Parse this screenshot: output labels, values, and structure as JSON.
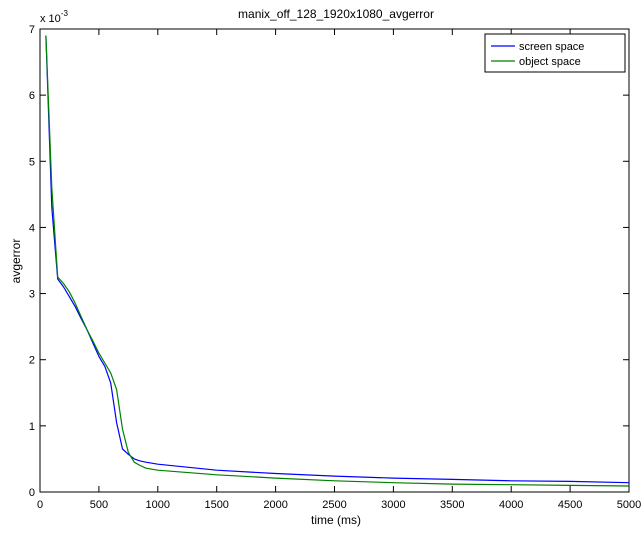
{
  "chart_data": {
    "type": "line",
    "title": "manix_off_128_1920x1080_avgerror",
    "xlabel": "time (ms)",
    "ylabel": "avgerror",
    "y_scale_label": {
      "base": "x 10",
      "exponent": "-3"
    },
    "xlim": [
      0,
      5000
    ],
    "ylim": [
      0,
      7
    ],
    "x_ticks": [
      0,
      500,
      1000,
      1500,
      2000,
      2500,
      3000,
      3500,
      4000,
      4500,
      5000
    ],
    "y_ticks": [
      0,
      1,
      2,
      3,
      4,
      5,
      6,
      7
    ],
    "grid": false,
    "legend_position": "top-right",
    "series": [
      {
        "name": "screen space",
        "color": "#0000ff",
        "x": [
          50,
          100,
          150,
          200,
          250,
          300,
          350,
          400,
          450,
          500,
          550,
          600,
          650,
          700,
          750,
          800,
          850,
          900,
          1000,
          1500,
          2000,
          2500,
          3000,
          3500,
          4000,
          4500,
          5000
        ],
        "y": [
          6.9,
          4.3,
          3.22,
          3.1,
          2.95,
          2.8,
          2.62,
          2.45,
          2.25,
          2.05,
          1.9,
          1.65,
          1.05,
          0.65,
          0.57,
          0.5,
          0.47,
          0.45,
          0.42,
          0.33,
          0.28,
          0.24,
          0.21,
          0.19,
          0.17,
          0.16,
          0.14
        ]
      },
      {
        "name": "object space",
        "color": "#008000",
        "x": [
          50,
          100,
          150,
          200,
          250,
          300,
          350,
          400,
          450,
          500,
          550,
          600,
          650,
          700,
          750,
          800,
          850,
          900,
          1000,
          1500,
          2000,
          2500,
          3000,
          3500,
          4000,
          4500,
          5000
        ],
        "y": [
          6.9,
          4.6,
          3.25,
          3.15,
          3.02,
          2.85,
          2.65,
          2.45,
          2.28,
          2.1,
          1.95,
          1.8,
          1.55,
          0.95,
          0.6,
          0.45,
          0.4,
          0.36,
          0.33,
          0.26,
          0.21,
          0.17,
          0.14,
          0.12,
          0.11,
          0.1,
          0.09
        ]
      }
    ]
  }
}
